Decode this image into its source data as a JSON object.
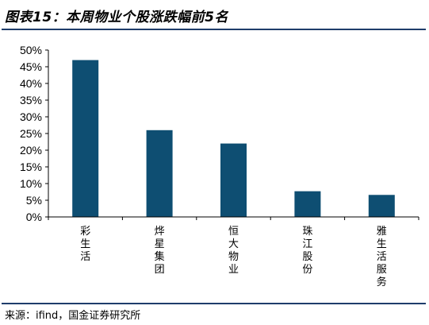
{
  "header": {
    "title": "图表15：本周物业个股涨跌幅前5名"
  },
  "footer": {
    "source": "来源：ifind，国金证券研究所"
  },
  "colors": {
    "bar": "#0e4e72",
    "axis": "#000000"
  },
  "chart_data": {
    "type": "bar",
    "title": "图表15：本周物业个股涨跌幅前5名",
    "categories": [
      "彩生活",
      "烨星集团",
      "恒大物业",
      "珠江股份",
      "雅生活服务"
    ],
    "values": [
      47,
      26,
      22,
      7.7,
      6.6
    ],
    "unit": "%",
    "ylim": [
      0,
      50
    ],
    "yticks": [
      0,
      5,
      10,
      15,
      20,
      25,
      30,
      35,
      40,
      45,
      50
    ],
    "ytick_labels": [
      "0%",
      "5%",
      "10%",
      "15%",
      "20%",
      "25%",
      "30%",
      "35%",
      "40%",
      "45%",
      "50%"
    ],
    "xlabel": "",
    "ylabel": "",
    "grid": false,
    "legend": "none"
  }
}
